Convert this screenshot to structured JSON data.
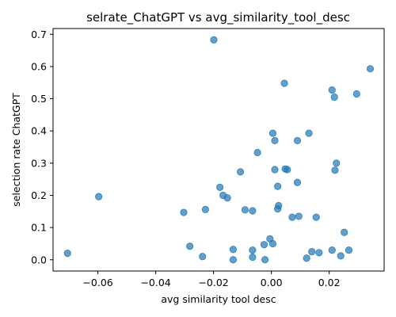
{
  "chart_data": {
    "type": "scatter",
    "title": "selrate_ChatGPT vs avg_similarity_tool_desc",
    "xlabel": "avg similarity tool desc",
    "ylabel": "selection rate ChatGPT",
    "xlim": [
      -0.0755,
      0.039
    ],
    "ylim": [
      -0.035,
      0.718
    ],
    "xticks": [
      -0.06,
      -0.04,
      -0.02,
      0.0,
      0.02
    ],
    "xtick_labels": [
      "−0.06",
      "−0.04",
      "−0.02",
      "0.00",
      "0.02"
    ],
    "yticks": [
      0.0,
      0.1,
      0.2,
      0.3,
      0.4,
      0.5,
      0.6,
      0.7
    ],
    "ytick_labels": [
      "0.0",
      "0.1",
      "0.2",
      "0.3",
      "0.4",
      "0.5",
      "0.6",
      "0.7"
    ],
    "grid": false,
    "marker_color": "#1f77b4",
    "marker_alpha": 0.7,
    "points": [
      {
        "x": -0.0705,
        "y": 0.02
      },
      {
        "x": -0.0597,
        "y": 0.196
      },
      {
        "x": -0.0303,
        "y": 0.147
      },
      {
        "x": -0.0282,
        "y": 0.042
      },
      {
        "x": -0.0238,
        "y": 0.01
      },
      {
        "x": -0.0228,
        "y": 0.156
      },
      {
        "x": -0.0199,
        "y": 0.683
      },
      {
        "x": -0.0178,
        "y": 0.225
      },
      {
        "x": -0.0167,
        "y": 0.2
      },
      {
        "x": -0.0152,
        "y": 0.192
      },
      {
        "x": -0.0132,
        "y": 0.032
      },
      {
        "x": -0.0132,
        "y": 0.0
      },
      {
        "x": -0.0107,
        "y": 0.273
      },
      {
        "x": -0.0091,
        "y": 0.155
      },
      {
        "x": -0.0065,
        "y": 0.152
      },
      {
        "x": -0.0065,
        "y": 0.03
      },
      {
        "x": -0.0065,
        "y": 0.008
      },
      {
        "x": -0.0048,
        "y": 0.333
      },
      {
        "x": -0.0025,
        "y": 0.047
      },
      {
        "x": -0.0022,
        "y": 0.0
      },
      {
        "x": -0.0005,
        "y": 0.065
      },
      {
        "x": 0.0005,
        "y": 0.05
      },
      {
        "x": 0.0005,
        "y": 0.393
      },
      {
        "x": 0.0012,
        "y": 0.37
      },
      {
        "x": 0.0012,
        "y": 0.28
      },
      {
        "x": 0.0022,
        "y": 0.228
      },
      {
        "x": 0.0022,
        "y": 0.158
      },
      {
        "x": 0.0025,
        "y": 0.168
      },
      {
        "x": 0.0045,
        "y": 0.548
      },
      {
        "x": 0.0048,
        "y": 0.282
      },
      {
        "x": 0.0055,
        "y": 0.28
      },
      {
        "x": 0.0072,
        "y": 0.132
      },
      {
        "x": 0.009,
        "y": 0.37
      },
      {
        "x": 0.009,
        "y": 0.24
      },
      {
        "x": 0.0095,
        "y": 0.135
      },
      {
        "x": 0.0122,
        "y": 0.005
      },
      {
        "x": 0.013,
        "y": 0.393
      },
      {
        "x": 0.014,
        "y": 0.025
      },
      {
        "x": 0.0155,
        "y": 0.132
      },
      {
        "x": 0.0165,
        "y": 0.022
      },
      {
        "x": 0.021,
        "y": 0.527
      },
      {
        "x": 0.021,
        "y": 0.03
      },
      {
        "x": 0.0218,
        "y": 0.505
      },
      {
        "x": 0.022,
        "y": 0.278
      },
      {
        "x": 0.0225,
        "y": 0.3
      },
      {
        "x": 0.024,
        "y": 0.012
      },
      {
        "x": 0.0252,
        "y": 0.085
      },
      {
        "x": 0.0268,
        "y": 0.03
      },
      {
        "x": 0.0295,
        "y": 0.515
      },
      {
        "x": 0.0342,
        "y": 0.593
      }
    ]
  }
}
